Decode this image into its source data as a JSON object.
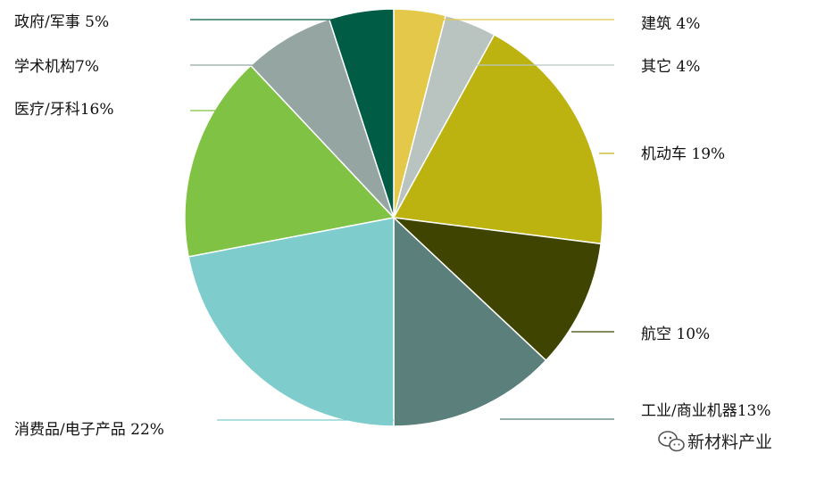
{
  "chart_data": {
    "type": "pie",
    "title": "",
    "slices": [
      {
        "label": "建筑 4%",
        "value": 4,
        "color": "#e3c84a"
      },
      {
        "label": "其它 4%",
        "value": 4,
        "color": "#b9c4c0"
      },
      {
        "label": "机动车 19%",
        "value": 19,
        "color": "#bdb310"
      },
      {
        "label": "航空 10%",
        "value": 10,
        "color": "#3f4500"
      },
      {
        "label": "工业/商业机器13%",
        "value": 13,
        "color": "#5b7f7a"
      },
      {
        "label": "消费品/电子产品 22%",
        "value": 22,
        "color": "#7ecdcc"
      },
      {
        "label": "医疗/牙科16%",
        "value": 16,
        "color": "#80c243"
      },
      {
        "label": "学术机构7%",
        "value": 7,
        "color": "#95a6a2"
      },
      {
        "label": "政府/军事 5%",
        "value": 5,
        "color": "#005c45"
      }
    ],
    "legend": "none"
  },
  "watermark": {
    "text": "新材料产业",
    "icon": "wechat-icon"
  }
}
